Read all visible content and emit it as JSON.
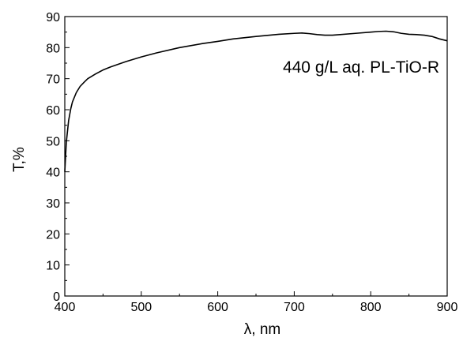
{
  "chart_data": {
    "type": "line",
    "title": "",
    "xlabel": "λ, nm",
    "ylabel": "T,%",
    "xlim": [
      400,
      900
    ],
    "ylim": [
      0,
      90
    ],
    "x_ticks": [
      400,
      500,
      600,
      700,
      800,
      900
    ],
    "y_ticks": [
      0,
      10,
      20,
      30,
      40,
      50,
      60,
      70,
      80,
      90
    ],
    "grid": false,
    "annotation": "440 g/L aq. PL-TiO-R",
    "series": [
      {
        "x": [
          400,
          402,
          405,
          408,
          410,
          415,
          420,
          425,
          430,
          440,
          450,
          460,
          480,
          500,
          520,
          550,
          580,
          600,
          620,
          650,
          680,
          700,
          710,
          720,
          730,
          740,
          750,
          760,
          780,
          800,
          810,
          820,
          830,
          840,
          850,
          860,
          870,
          880,
          890,
          900
        ],
        "y": [
          40.0,
          49.5,
          56.5,
          60.5,
          62.5,
          65.5,
          67.5,
          68.8,
          70.0,
          71.5,
          72.8,
          73.8,
          75.5,
          77.0,
          78.3,
          80.0,
          81.3,
          82.0,
          82.8,
          83.6,
          84.3,
          84.6,
          84.7,
          84.5,
          84.2,
          84.0,
          84.0,
          84.2,
          84.6,
          85.0,
          85.2,
          85.3,
          85.1,
          84.6,
          84.3,
          84.2,
          84.0,
          83.6,
          82.8,
          82.2
        ]
      }
    ]
  }
}
